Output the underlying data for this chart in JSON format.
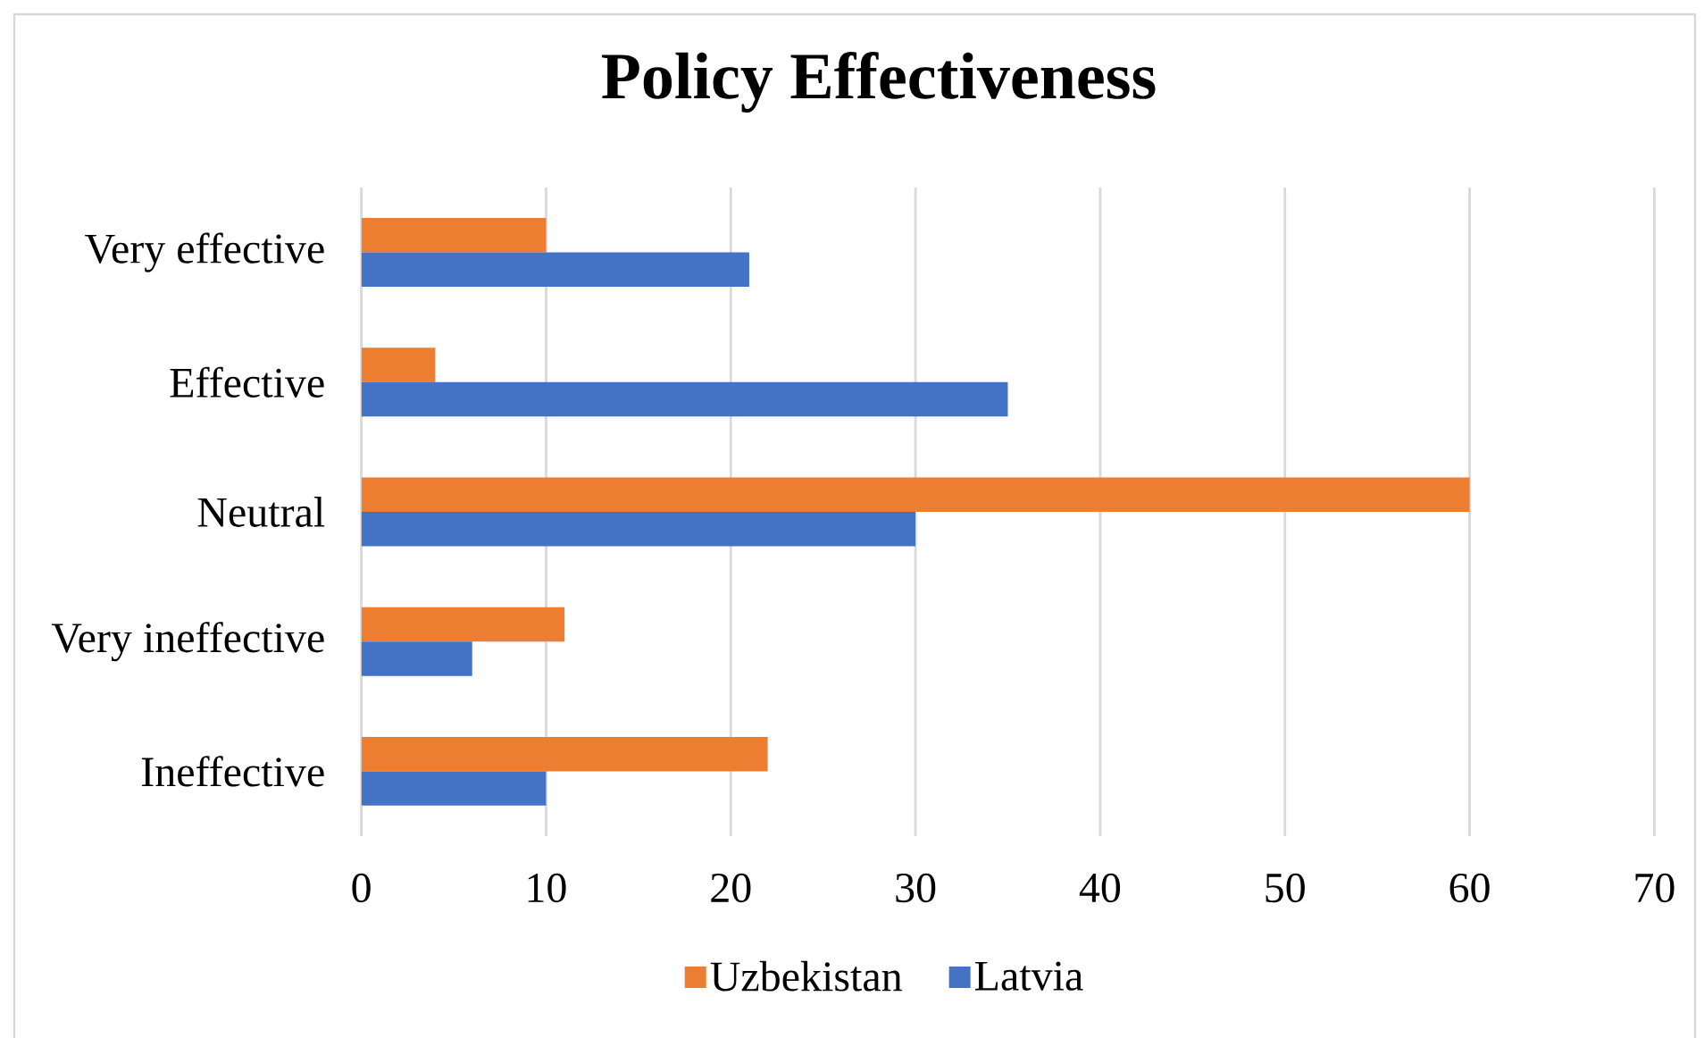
{
  "chart_data": {
    "type": "bar",
    "orientation": "horizontal",
    "title": "Policy Effectiveness",
    "categories": [
      "Very effective",
      "Effective",
      "Neutral",
      "Very ineffective",
      "Ineffective"
    ],
    "series": [
      {
        "name": "Uzbekistan",
        "color": "#ed7d31",
        "values": [
          10,
          4,
          60,
          11,
          22
        ]
      },
      {
        "name": "Latvia",
        "color": "#4472c4",
        "values": [
          21,
          35,
          30,
          6,
          10
        ]
      }
    ],
    "xlim": [
      0,
      70
    ],
    "xticks": [
      0,
      10,
      20,
      30,
      40,
      50,
      60,
      70
    ],
    "grid": "x",
    "legend": "bottom"
  }
}
